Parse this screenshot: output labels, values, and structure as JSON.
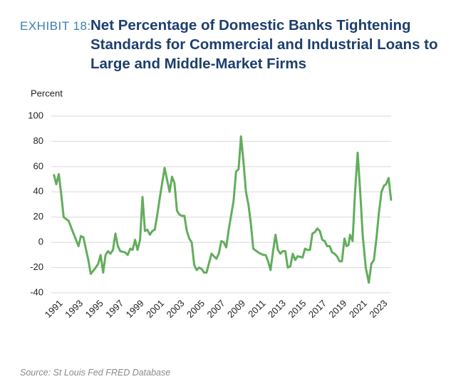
{
  "chart_data": {
    "type": "line",
    "exhibit": "EXHIBIT 18:",
    "title": "Net Percentage of Domestic Banks Tightening Standards for Commercial and Industrial Loans to Large and Middle-Market Firms",
    "y_label": "Percent",
    "source": "Source: St Louis Fed FRED Database",
    "color": "#62ad5c",
    "x": [
      1990.25,
      1990.49,
      1990.74,
      1990.98,
      1991.22,
      1991.71,
      1992.19,
      1992.68,
      1992.92,
      1993.16,
      1993.65,
      1993.89,
      1994.38,
      1994.62,
      1994.86,
      1995.11,
      1995.35,
      1995.59,
      1995.83,
      1996.08,
      1996.32,
      1996.56,
      1996.8,
      1997.29,
      1997.53,
      1997.78,
      1998.02,
      1998.26,
      1998.5,
      1998.75,
      1998.99,
      1999.23,
      1999.47,
      1999.72,
      1999.96,
      2000.2,
      2000.45,
      2000.69,
      2001.17,
      2001.66,
      2001.9,
      2002.14,
      2002.39,
      2002.63,
      2002.87,
      2003.12,
      2003.36,
      2003.6,
      2003.84,
      2004.09,
      2004.33,
      2004.57,
      2004.81,
      2005.06,
      2005.3,
      2005.79,
      2006.03,
      2006.27,
      2006.51,
      2006.76,
      2007.0,
      2007.24,
      2007.49,
      2007.97,
      2008.21,
      2008.46,
      2008.7,
      2008.94,
      2009.19,
      2009.43,
      2009.67,
      2009.91,
      2010.4,
      2010.89,
      2011.13,
      2011.37,
      2011.61,
      2011.86,
      2012.1,
      2012.34,
      2012.58,
      2012.83,
      2013.07,
      2013.31,
      2013.56,
      2013.8,
      2014.04,
      2014.28,
      2014.77,
      2015.01,
      2015.25,
      2015.5,
      2015.74,
      2015.98,
      2016.22,
      2016.47,
      2016.71,
      2016.95,
      2017.19,
      2017.44,
      2017.68,
      2017.92,
      2018.16,
      2018.41,
      2018.65,
      2018.9,
      2019.1,
      2019.3,
      2019.45,
      2019.7,
      2019.95,
      2020.2,
      2020.45,
      2020.7,
      2021.0,
      2021.3,
      2021.55,
      2021.8,
      2022.05,
      2022.3,
      2022.55,
      2022.8,
      2023.0,
      2023.25,
      2023.5
    ],
    "values": [
      54,
      46,
      54,
      38,
      20,
      17,
      7,
      -3,
      5,
      4,
      -14,
      -25,
      -20,
      -17,
      -10,
      -24,
      -10,
      -7,
      -9,
      -6,
      7,
      -3,
      -7,
      -8,
      -10,
      -5,
      -6,
      2,
      -6,
      2,
      36,
      9,
      10,
      6,
      9,
      10,
      22,
      35,
      59,
      40,
      52,
      47,
      25,
      22,
      21,
      21,
      9,
      3,
      0,
      -18,
      -22,
      -20,
      -21,
      -24,
      -24,
      -9,
      -11,
      -13,
      -9,
      1,
      0,
      -4,
      10,
      33,
      56,
      58,
      84,
      64,
      40,
      30,
      15,
      -5,
      -8,
      -10,
      -10,
      -15,
      -22,
      -7,
      6,
      -6,
      -9,
      -7,
      -7,
      -20,
      -19,
      -9,
      -14,
      -11,
      -12,
      -5,
      -6,
      -6,
      7,
      8,
      11,
      9,
      2,
      1,
      -3,
      -3,
      -8,
      -9,
      -11,
      -15,
      -15,
      3,
      -3,
      -2,
      6,
      1,
      41,
      71,
      40,
      5,
      -20,
      -32,
      -17,
      -14,
      3,
      24,
      40,
      45,
      46,
      51,
      33
    ],
    "xlim": [
      1990,
      2023.5
    ],
    "xticks": [
      1991,
      1993,
      1995,
      1997,
      1999,
      2001,
      2003,
      2005,
      2007,
      2009,
      2011,
      2013,
      2015,
      2017,
      2019,
      2021,
      2023
    ],
    "ylim": [
      -40,
      100
    ],
    "yticks": [
      100,
      80,
      60,
      40,
      20,
      0,
      -20,
      -40
    ],
    "grid": true
  }
}
